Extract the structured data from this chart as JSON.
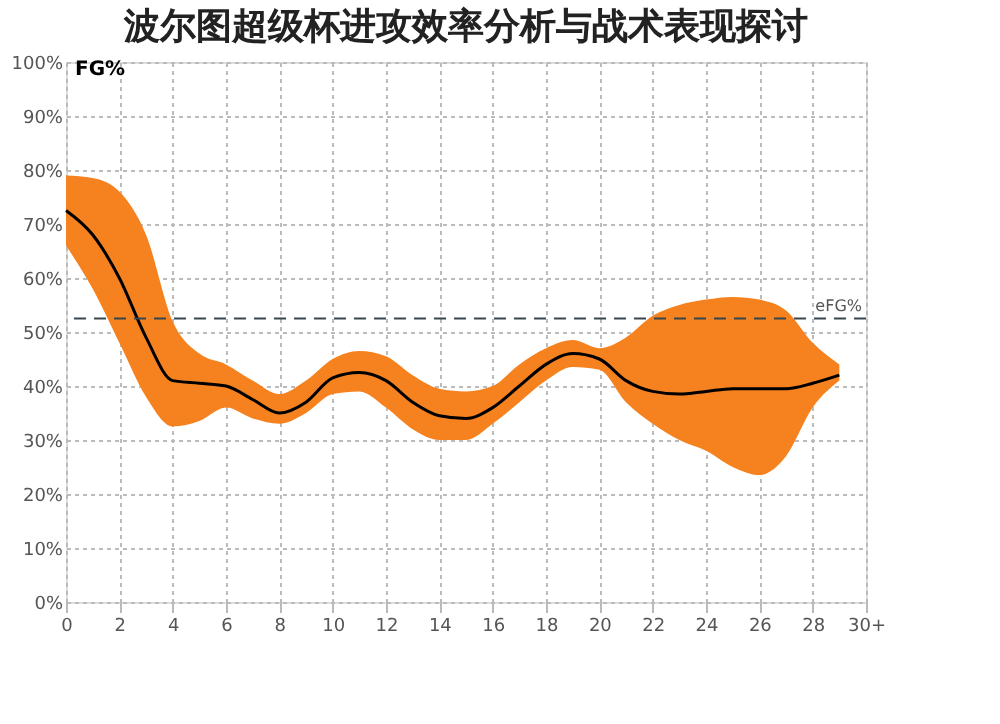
{
  "chart_data": {
    "type": "line",
    "title": "波尔图超级杯进攻效率分析与战术表现探讨",
    "ylabel": "FG%",
    "x": [
      0,
      1,
      2,
      3,
      4,
      5,
      6,
      7,
      8,
      9,
      10,
      11,
      12,
      13,
      14,
      15,
      16,
      17,
      18,
      19,
      20,
      21,
      22,
      23,
      24,
      25,
      26,
      27,
      28,
      29
    ],
    "series": [
      {
        "color": "#000000",
        "values": [
          72.5,
          68,
          60,
          49,
          41,
          40.5,
          40,
          37.5,
          35,
          37,
          41.5,
          42.5,
          41,
          37,
          34.5,
          34,
          36,
          40,
          44,
          46,
          45,
          41,
          39,
          38.5,
          39,
          39.5,
          39.5,
          39.5,
          40.5,
          42
        ],
        "lower": [
          66,
          58,
          48,
          38,
          32.5,
          33.5,
          36,
          34,
          33,
          35,
          38.5,
          39,
          36,
          32,
          30,
          30,
          33,
          37,
          41,
          43.5,
          43,
          37,
          33,
          30,
          28,
          25,
          23.5,
          27,
          36,
          41
        ],
        "upper": [
          79,
          78.5,
          76,
          68,
          52,
          46,
          44,
          41,
          38.5,
          41,
          45,
          46.5,
          45.5,
          42,
          39.5,
          39,
          40,
          44,
          47,
          48.5,
          47,
          49,
          53,
          55,
          56,
          56.5,
          56,
          54,
          48,
          44
        ],
        "line_style": "solid"
      }
    ],
    "ref_lines": [
      {
        "axis": "y",
        "value": 52.5,
        "label": "eFG%",
        "color": "#37474f",
        "line_style": "dashed"
      }
    ],
    "xlim": [
      0,
      30
    ],
    "xticks": [
      0,
      2,
      4,
      6,
      8,
      10,
      12,
      14,
      16,
      18,
      20,
      22,
      24,
      26,
      28,
      {
        "value": 30,
        "label": "30+"
      }
    ],
    "ylim": [
      0,
      100
    ],
    "yticks": [
      {
        "value": 0,
        "label": "0%"
      },
      {
        "value": 10,
        "label": "10%"
      },
      {
        "value": 20,
        "label": "20%"
      },
      {
        "value": 30,
        "label": "30%"
      },
      {
        "value": 40,
        "label": "40%"
      },
      {
        "value": 50,
        "label": "50%"
      },
      {
        "value": 60,
        "label": "60%"
      },
      {
        "value": 70,
        "label": "70%"
      },
      {
        "value": 80,
        "label": "80%"
      },
      {
        "value": 90,
        "label": "90%"
      },
      {
        "value": 100,
        "label": "100%"
      }
    ],
    "grid": true,
    "marker": "none"
  }
}
